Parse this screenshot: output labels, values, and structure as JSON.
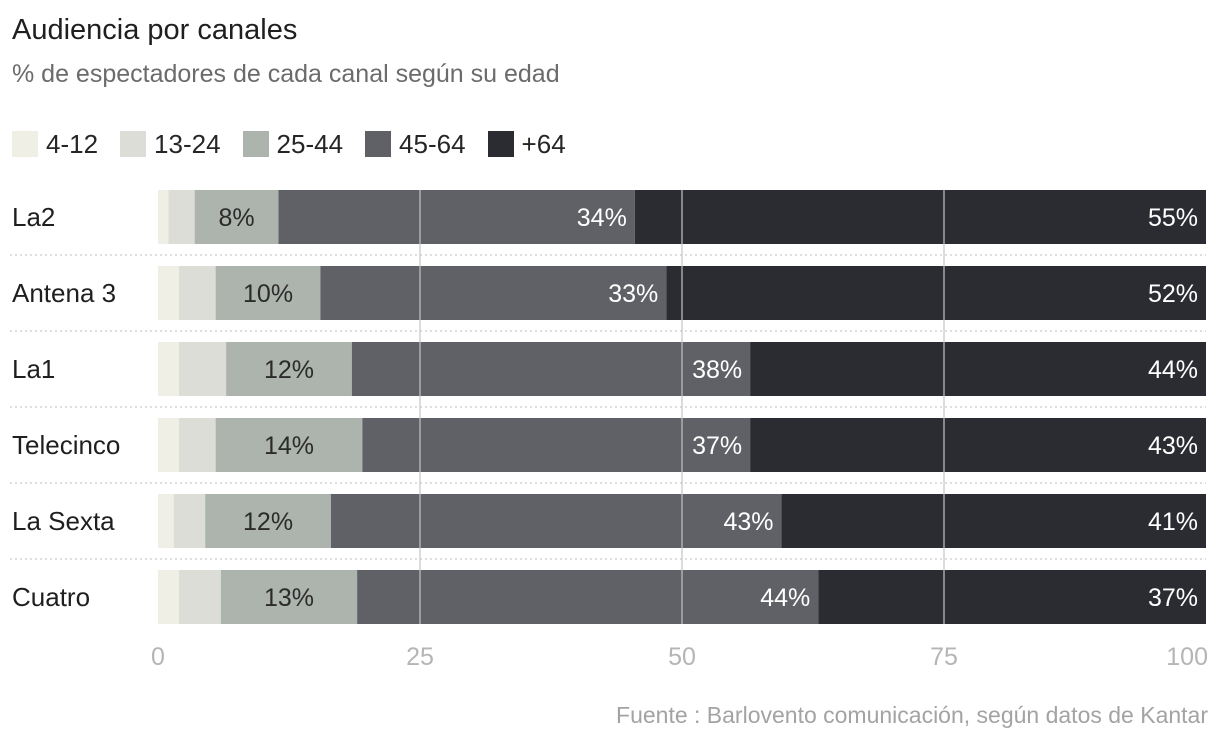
{
  "title": "Audiencia por canales",
  "subtitle": "% de espectadores de cada canal según su edad",
  "source": "Fuente : Barlovento comunicación, según datos de Kantar",
  "chart_data": {
    "type": "bar",
    "orientation": "horizontal",
    "stacked": true,
    "categories": [
      "La2",
      "Antena 3",
      "La1",
      "Telecinco",
      "La Sexta",
      "Cuatro"
    ],
    "series": [
      {
        "name": "4-12",
        "color": "#f0efe6",
        "values": [
          1,
          2,
          2,
          2,
          1.5,
          2
        ]
      },
      {
        "name": "13-24",
        "color": "#dcddd6",
        "values": [
          2.5,
          3.5,
          4.5,
          3.5,
          3,
          4
        ]
      },
      {
        "name": "25-44",
        "color": "#adb3ad",
        "values": [
          8,
          10,
          12,
          14,
          12,
          13
        ],
        "labels": [
          "8%",
          "10%",
          "12%",
          "14%",
          "12%",
          "13%"
        ]
      },
      {
        "name": "45-64",
        "color": "#5f6166",
        "values": [
          34,
          33,
          38,
          37,
          43,
          44
        ],
        "labels": [
          "34%",
          "33%",
          "38%",
          "37%",
          "43%",
          "44%"
        ]
      },
      {
        "name": "+64",
        "color": "#2a2c32",
        "values": [
          55,
          52,
          44,
          43,
          41,
          37
        ],
        "labels": [
          "55%",
          "52%",
          "44%",
          "43%",
          "41%",
          "37%"
        ]
      }
    ],
    "xlim": [
      0,
      100
    ],
    "xticks": [
      0,
      25,
      50,
      75,
      100
    ],
    "grid": true,
    "legend_position": "top-left"
  }
}
